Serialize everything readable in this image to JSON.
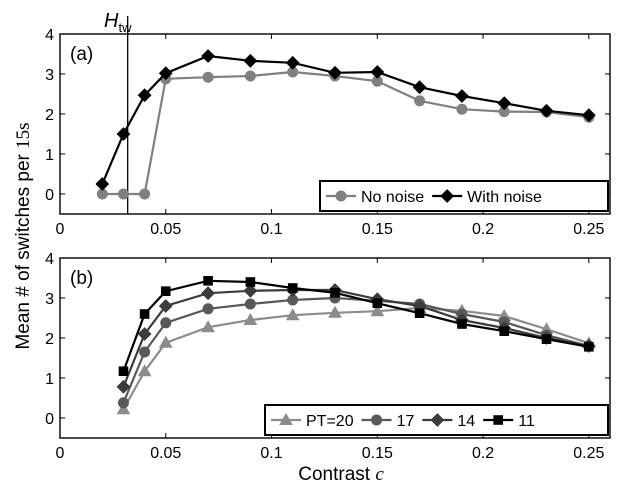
{
  "figure": {
    "ylabel_main": "Mean # of switches per ",
    "ylabel_unit": "15s",
    "xlabel_main": "Contrast ",
    "xlabel_var": "c",
    "threshold_label_main": "H",
    "threshold_label_sub": "tw"
  },
  "chart_data": [
    {
      "type": "line",
      "panel_label": "(a)",
      "xlim": [
        0,
        0.26
      ],
      "ylim": [
        -0.5,
        4
      ],
      "xticks": [
        0,
        0.05,
        0.1,
        0.15,
        0.2,
        0.25
      ],
      "xtick_labels": [
        "0",
        "0.05",
        "0.1",
        "0.15",
        "0.2",
        "0.25"
      ],
      "yticks": [
        0,
        1,
        2,
        3,
        4
      ],
      "ytick_labels": [
        "0",
        "1",
        "2",
        "3",
        "4"
      ],
      "vline": 0.032,
      "legend_position": "bottom-right",
      "series": [
        {
          "name": "No noise",
          "color": "#808080",
          "marker": "circle",
          "x": [
            0.02,
            0.03,
            0.04,
            0.05,
            0.07,
            0.09,
            0.11,
            0.13,
            0.15,
            0.17,
            0.19,
            0.21,
            0.23,
            0.25
          ],
          "y": [
            0,
            0,
            0,
            2.88,
            2.92,
            2.95,
            3.05,
            2.95,
            2.82,
            2.33,
            2.12,
            2.06,
            2.05,
            1.92
          ]
        },
        {
          "name": "With noise",
          "color": "#000000",
          "marker": "diamond",
          "x": [
            0.02,
            0.03,
            0.04,
            0.05,
            0.07,
            0.09,
            0.11,
            0.13,
            0.15,
            0.17,
            0.19,
            0.21,
            0.23,
            0.25
          ],
          "y": [
            0.25,
            1.5,
            2.47,
            3.02,
            3.45,
            3.33,
            3.28,
            3.03,
            3.05,
            2.67,
            2.45,
            2.27,
            2.08,
            1.97
          ]
        }
      ]
    },
    {
      "type": "line",
      "panel_label": "(b)",
      "xlim": [
        0,
        0.26
      ],
      "ylim": [
        -0.5,
        4
      ],
      "xticks": [
        0,
        0.05,
        0.1,
        0.15,
        0.2,
        0.25
      ],
      "xtick_labels": [
        "0",
        "0.05",
        "0.1",
        "0.15",
        "0.2",
        "0.25"
      ],
      "yticks": [
        0,
        1,
        2,
        3,
        4
      ],
      "ytick_labels": [
        "0",
        "1",
        "2",
        "3",
        "4"
      ],
      "legend_position": "bottom-right",
      "series": [
        {
          "name": "PT=20",
          "color": "#8c8c8c",
          "marker": "triangle",
          "x": [
            0.03,
            0.04,
            0.05,
            0.07,
            0.09,
            0.11,
            0.13,
            0.15,
            0.17,
            0.19,
            0.21,
            0.23,
            0.25
          ],
          "y": [
            0.22,
            1.17,
            1.88,
            2.27,
            2.45,
            2.57,
            2.63,
            2.67,
            2.75,
            2.68,
            2.55,
            2.22,
            1.87
          ]
        },
        {
          "name": "17",
          "color": "#595959",
          "marker": "circle",
          "x": [
            0.03,
            0.04,
            0.05,
            0.07,
            0.09,
            0.11,
            0.13,
            0.15,
            0.17,
            0.19,
            0.21,
            0.23,
            0.25
          ],
          "y": [
            0.38,
            1.65,
            2.38,
            2.73,
            2.85,
            2.95,
            3.0,
            2.93,
            2.85,
            2.6,
            2.4,
            2.07,
            1.8
          ]
        },
        {
          "name": "14",
          "color": "#3c3c3c",
          "marker": "diamond",
          "x": [
            0.03,
            0.04,
            0.05,
            0.07,
            0.09,
            0.11,
            0.13,
            0.15,
            0.17,
            0.19,
            0.21,
            0.23,
            0.25
          ],
          "y": [
            0.78,
            2.1,
            2.8,
            3.12,
            3.18,
            3.2,
            3.2,
            2.97,
            2.8,
            2.45,
            2.25,
            2.0,
            1.8
          ]
        },
        {
          "name": "11",
          "color": "#000000",
          "marker": "square",
          "x": [
            0.03,
            0.04,
            0.05,
            0.07,
            0.09,
            0.11,
            0.13,
            0.15,
            0.17,
            0.19,
            0.21,
            0.23,
            0.25
          ],
          "y": [
            1.17,
            2.6,
            3.17,
            3.43,
            3.4,
            3.25,
            3.13,
            2.87,
            2.62,
            2.35,
            2.17,
            1.97,
            1.78
          ]
        }
      ]
    }
  ]
}
